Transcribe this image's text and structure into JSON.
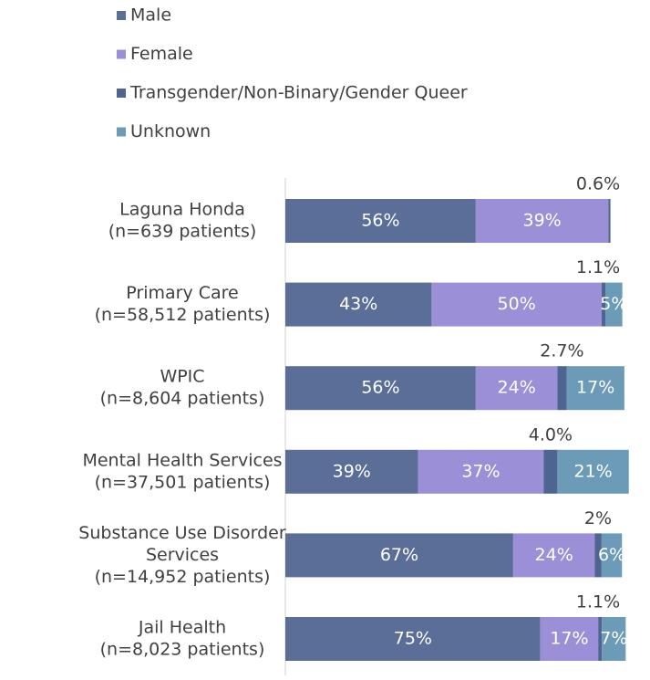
{
  "chart_data": {
    "type": "stacked_bar_horizontal",
    "categories": [
      [
        "Laguna Honda",
        "(n=639 patients)"
      ],
      [
        "Primary Care",
        "(n=58,512 patients)"
      ],
      [
        "WPIC",
        "(n=8,604 patients)"
      ],
      [
        "Mental Health Services",
        "(n=37,501 patients)"
      ],
      [
        "Substance Use Disorder",
        "Services",
        "(n=14,952 patients)"
      ],
      [
        "Jail Health",
        "(n=8,023 patients)"
      ]
    ],
    "series": [
      {
        "name": "Male",
        "color": "#5b6e98",
        "values": [
          56,
          43,
          56,
          39,
          67,
          75
        ],
        "value_labels": [
          "56%",
          "43%",
          "56%",
          "39%",
          "67%",
          "75%"
        ]
      },
      {
        "name": "Female",
        "color": "#9b8fd7",
        "values": [
          39,
          50,
          24,
          37,
          24,
          17
        ],
        "value_labels": [
          "39%",
          "50%",
          "24%",
          "37%",
          "24%",
          "17%"
        ]
      },
      {
        "name": "Transgender/Non-Binary/Gender Queer",
        "color": "#4d6590",
        "values": [
          0.6,
          1.1,
          2.7,
          4,
          2,
          1.1
        ],
        "value_labels": [
          "0.6%",
          "1.1%",
          "2.7%",
          "4.0%",
          "2%",
          "1.1%"
        ]
      },
      {
        "name": "Unknown",
        "color": "#6b9bb6",
        "values": [
          0,
          5,
          17,
          21,
          6,
          7
        ],
        "value_labels": [
          null,
          "5%",
          "17%",
          "21%",
          "6%",
          "7%"
        ]
      }
    ],
    "xlim": [
      0,
      100
    ]
  }
}
